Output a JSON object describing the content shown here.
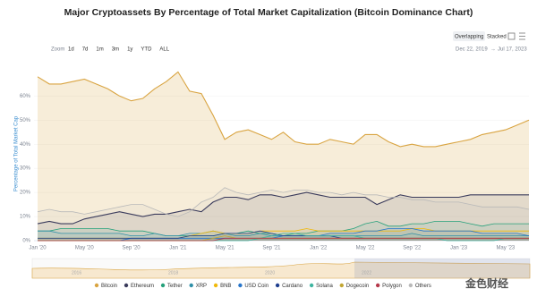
{
  "chart_data": {
    "type": "line",
    "title": "Major Cryptoassets By Percentage of Total Market Capitalization (Bitcoin Dominance Chart)",
    "ylabel": "Percentage of Total Market Cap",
    "categories": [
      "Jan '20",
      null,
      null,
      null,
      "May '20",
      null,
      null,
      null,
      "Sep '20",
      null,
      null,
      null,
      "Jan '21",
      null,
      null,
      null,
      "May '21",
      null,
      null,
      null,
      "Sep '21",
      null,
      null,
      null,
      "Jan '22",
      null,
      null,
      null,
      "May '22",
      null,
      null,
      null,
      "Sep '22",
      null,
      null,
      null,
      "Jan '23",
      null,
      null,
      null,
      "May '23",
      null,
      null
    ],
    "ylim": [
      0,
      72
    ],
    "yticks": [
      {
        "value": 0,
        "label": "0%"
      },
      {
        "value": 10,
        "label": "10%"
      },
      {
        "value": 20,
        "label": "20%"
      },
      {
        "value": 30,
        "label": "30%"
      },
      {
        "value": 40,
        "label": "40%"
      },
      {
        "value": 50,
        "label": "50%"
      },
      {
        "value": 60,
        "label": "60%"
      }
    ],
    "grid": true,
    "series": [
      {
        "name": "Bitcoin",
        "color": "#d9a441",
        "values": [
          68,
          65,
          65,
          66,
          67,
          65,
          63,
          60,
          58,
          59,
          63,
          66,
          70,
          62,
          61,
          52,
          42,
          45,
          46,
          44,
          42,
          45,
          41,
          40,
          40,
          42,
          41,
          40,
          44,
          44,
          41,
          39,
          40,
          39,
          39,
          40,
          41,
          42,
          44,
          45,
          46,
          48,
          50
        ]
      },
      {
        "name": "Ethereum",
        "color": "#3a3b5c",
        "values": [
          7,
          8,
          7,
          7,
          9,
          10,
          11,
          12,
          11,
          10,
          11,
          11,
          12,
          13,
          12,
          16,
          18,
          18,
          17,
          19,
          19,
          18,
          19,
          20,
          19,
          18,
          18,
          18,
          18,
          15,
          17,
          19,
          18,
          18,
          18,
          18,
          18,
          19,
          19,
          19,
          19,
          19,
          19
        ]
      },
      {
        "name": "Tether",
        "color": "#26a17b",
        "values": [
          4,
          4,
          5,
          5,
          5,
          5,
          5,
          4,
          4,
          4,
          3,
          2,
          2,
          2,
          2,
          2,
          3,
          3,
          4,
          3,
          3,
          2,
          3,
          3,
          4,
          4,
          4,
          5,
          7,
          8,
          6,
          6,
          7,
          7,
          8,
          8,
          8,
          7,
          6,
          7,
          7,
          7,
          7
        ]
      },
      {
        "name": "XRP",
        "color": "#2f8fa8",
        "values": [
          4,
          4,
          3,
          3,
          3,
          3,
          3,
          3,
          2,
          2,
          3,
          2,
          2,
          3,
          3,
          4,
          3,
          2,
          2,
          3,
          2,
          2,
          2,
          2,
          2,
          2,
          2,
          2,
          2,
          2,
          2,
          2,
          3,
          2,
          2,
          2,
          2,
          2,
          2,
          2,
          2,
          2,
          2
        ]
      },
      {
        "name": "BNB",
        "color": "#f0b90b",
        "values": [
          1,
          1,
          1,
          1,
          1,
          1,
          1,
          1,
          1,
          1,
          1,
          1,
          1,
          2,
          3,
          4,
          3,
          3,
          3,
          4,
          4,
          4,
          4,
          5,
          4,
          4,
          4,
          4,
          4,
          4,
          4,
          4,
          5,
          5,
          4,
          4,
          4,
          4,
          4,
          4,
          4,
          4,
          4
        ]
      },
      {
        "name": "USD Coin",
        "color": "#2775ca",
        "values": [
          0,
          0,
          0,
          0,
          0,
          0,
          0,
          0,
          1,
          1,
          1,
          1,
          1,
          1,
          1,
          1,
          1,
          1,
          1,
          1,
          1,
          2,
          2,
          2,
          2,
          3,
          3,
          3,
          4,
          4,
          5,
          5,
          5,
          4,
          4,
          4,
          4,
          4,
          3,
          3,
          3,
          3,
          2
        ]
      },
      {
        "name": "Cardano",
        "color": "#1f3f8f",
        "values": [
          1,
          1,
          1,
          1,
          1,
          1,
          1,
          1,
          1,
          1,
          1,
          1,
          1,
          2,
          2,
          2,
          3,
          3,
          3,
          4,
          3,
          2,
          2,
          2,
          2,
          2,
          1,
          1,
          1,
          1,
          1,
          1,
          1,
          1,
          1,
          1,
          1,
          1,
          1,
          1,
          1,
          1,
          1
        ]
      },
      {
        "name": "Solana",
        "color": "#3fb5a0",
        "values": [
          0,
          0,
          0,
          0,
          0,
          0,
          0,
          0,
          0,
          0,
          0,
          0,
          0,
          0,
          0,
          0,
          0,
          0,
          0,
          1,
          2,
          3,
          3,
          2,
          2,
          2,
          2,
          2,
          1,
          1,
          1,
          1,
          1,
          1,
          1,
          0,
          0,
          0,
          0,
          0,
          1,
          1,
          1
        ]
      },
      {
        "name": "Dogecoin",
        "color": "#c2a633",
        "values": [
          0,
          0,
          0,
          0,
          0,
          0,
          0,
          0,
          0,
          0,
          0,
          0,
          0,
          0,
          0,
          1,
          2,
          1,
          1,
          1,
          1,
          1,
          1,
          1,
          1,
          1,
          1,
          1,
          1,
          1,
          1,
          1,
          1,
          1,
          1,
          1,
          1,
          1,
          1,
          1,
          1,
          1,
          1
        ]
      },
      {
        "name": "Polygon",
        "color": "#b5384a",
        "values": [
          0,
          0,
          0,
          0,
          0,
          0,
          0,
          0,
          0,
          0,
          0,
          0,
          0,
          0,
          0,
          0,
          1,
          1,
          1,
          1,
          1,
          1,
          1,
          1,
          1,
          1,
          1,
          1,
          1,
          1,
          1,
          1,
          1,
          1,
          1,
          1,
          1,
          1,
          1,
          1,
          1,
          1,
          1
        ]
      },
      {
        "name": "Others",
        "color": "#b9b9b9",
        "values": [
          12,
          13,
          12,
          12,
          11,
          12,
          13,
          14,
          15,
          15,
          13,
          11,
          10,
          12,
          16,
          18,
          22,
          20,
          19,
          20,
          21,
          20,
          21,
          21,
          20,
          20,
          19,
          20,
          19,
          19,
          18,
          18,
          17,
          17,
          16,
          16,
          16,
          15,
          14,
          14,
          14,
          14,
          13
        ]
      }
    ]
  },
  "controls": {
    "zoom_label": "Zoom",
    "zoom_options": [
      "1d",
      "7d",
      "1m",
      "3m",
      "1y",
      "YTD",
      "ALL"
    ],
    "view_modes": [
      "Overlapping",
      "Stacked"
    ],
    "date_from": "Dec 22, 2019",
    "date_separator": "→",
    "date_to": "Jul 17, 2023"
  },
  "navigator": {
    "labels": [
      "2016",
      "2018",
      "2020",
      "2022"
    ]
  },
  "watermark": "金色财经"
}
